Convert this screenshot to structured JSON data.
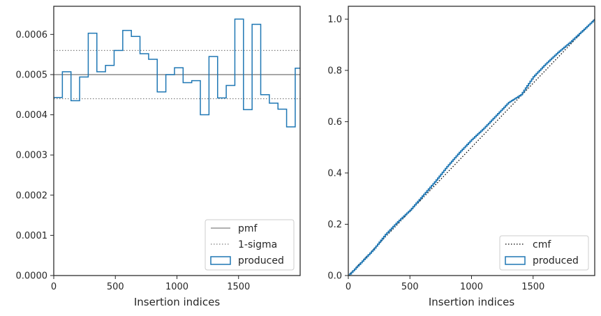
{
  "chart_data": [
    {
      "type": "step",
      "xlabel": "Insertion indices",
      "ylabel": "",
      "xlim": [
        0,
        2000
      ],
      "ylim": [
        0,
        0.00067
      ],
      "x_ticks": [
        "0",
        "500",
        "1000",
        "1500"
      ],
      "x_tick_values": [
        0,
        500,
        1000,
        1500
      ],
      "y_ticks": [
        "0.0000",
        "0.0001",
        "0.0002",
        "0.0003",
        "0.0004",
        "0.0005",
        "0.0006"
      ],
      "y_tick_values": [
        0,
        0.0001,
        0.0002,
        0.0003,
        0.0004,
        0.0005,
        0.0006
      ],
      "grid": false,
      "legend_position": "bottom-right",
      "pmf": 0.0005,
      "sigma_band": [
        0.00044,
        0.00056
      ],
      "bin_edges": [
        0,
        70,
        140,
        210,
        280,
        350,
        420,
        490,
        560,
        630,
        700,
        770,
        840,
        910,
        980,
        1050,
        1120,
        1190,
        1260,
        1330,
        1400,
        1470,
        1540,
        1610,
        1680,
        1750,
        1820,
        1890,
        1960,
        2000
      ],
      "produced": [
        0.000443,
        0.000507,
        0.000435,
        0.000494,
        0.000603,
        0.000507,
        0.000523,
        0.00056,
        0.00061,
        0.000595,
        0.000552,
        0.000538,
        0.000457,
        0.0005,
        0.000517,
        0.00048,
        0.000485,
        0.0004,
        0.000545,
        0.000442,
        0.000473,
        0.000638,
        0.000413,
        0.000625,
        0.00045,
        0.000429,
        0.000414,
        0.00037,
        0.000516
      ],
      "legend": [
        {
          "label": "pmf",
          "style": "solid-line",
          "color": "#808080"
        },
        {
          "label": "1-sigma",
          "style": "dotted-line",
          "color": "#808080"
        },
        {
          "label": "produced",
          "style": "patch",
          "color": "#1f77b4"
        }
      ]
    },
    {
      "type": "line",
      "xlabel": "Insertion indices",
      "ylabel": "",
      "xlim": [
        0,
        2000
      ],
      "ylim": [
        0,
        1.05
      ],
      "x_ticks": [
        "0",
        "500",
        "1000",
        "1500"
      ],
      "x_tick_values": [
        0,
        500,
        1000,
        1500
      ],
      "y_ticks": [
        "0.0",
        "0.2",
        "0.4",
        "0.6",
        "0.8",
        "1.0"
      ],
      "y_tick_values": [
        0,
        0.2,
        0.4,
        0.6,
        0.8,
        1.0
      ],
      "grid": false,
      "legend_position": "bottom-right",
      "cmf": {
        "x": [
          0,
          2000
        ],
        "y": [
          0,
          1.0
        ]
      },
      "produced": {
        "x": [
          0,
          100,
          200,
          300,
          400,
          500,
          600,
          700,
          800,
          900,
          1000,
          1100,
          1200,
          1300,
          1400,
          1500,
          1600,
          1700,
          1800,
          1900,
          2000
        ],
        "y": [
          0,
          0.05,
          0.1,
          0.16,
          0.21,
          0.255,
          0.31,
          0.365,
          0.425,
          0.48,
          0.53,
          0.575,
          0.625,
          0.675,
          0.705,
          0.775,
          0.825,
          0.87,
          0.91,
          0.955,
          1.0
        ]
      },
      "legend": [
        {
          "label": "cmf",
          "style": "dotted-line",
          "color": "#000000"
        },
        {
          "label": "produced",
          "style": "patch",
          "color": "#1f77b4"
        }
      ]
    }
  ]
}
